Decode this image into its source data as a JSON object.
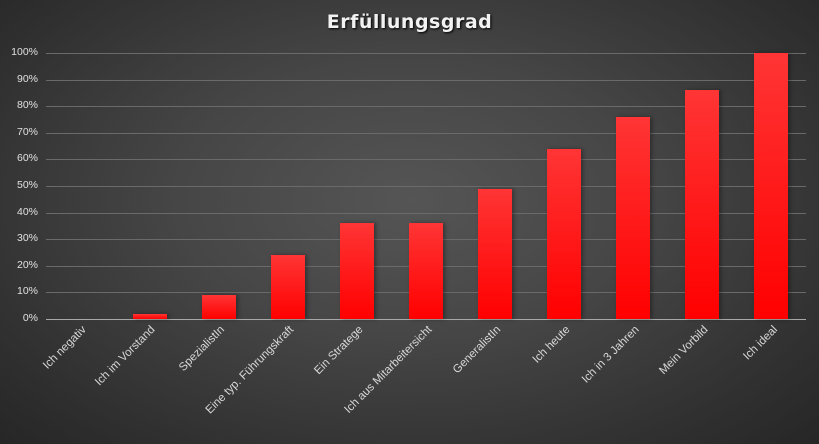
{
  "chart_data": {
    "type": "bar",
    "title": "Erfüllungsgrad",
    "xlabel": "",
    "ylabel": "",
    "ylim": [
      0,
      100
    ],
    "yticks": [
      "0%",
      "10%",
      "20%",
      "30%",
      "40%",
      "50%",
      "60%",
      "70%",
      "80%",
      "90%",
      "100%"
    ],
    "grid": true,
    "legend": null,
    "categories": [
      "Ich negativ",
      "Ich im Vorstand",
      "SpezialistIn",
      "Eine typ. Führungskraft",
      "Ein Stratege",
      "Ich aus Mitarbeitersicht",
      "GeneralistIn",
      "Ich heute",
      "Ich in 3 Jahren",
      "Mein Vorbild",
      "Ich ideal"
    ],
    "values": [
      0,
      2,
      9,
      24,
      36,
      36,
      49,
      64,
      76,
      86,
      100
    ],
    "bar_color": "#ff0000"
  }
}
